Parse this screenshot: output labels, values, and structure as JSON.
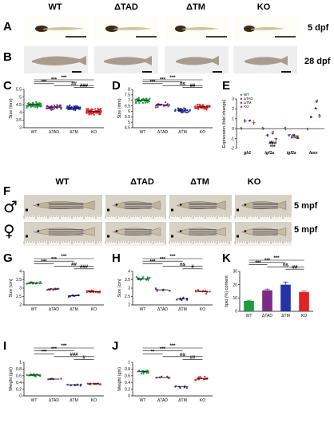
{
  "groups": [
    "WT",
    "ΔTAD",
    "ΔTM",
    "KO"
  ],
  "colors": {
    "WT": "#1e9c3a",
    "ΔTAD": "#7d2a86",
    "ΔTM": "#2533a8",
    "KO": "#e02424"
  },
  "panel_letters": [
    "A",
    "B",
    "C",
    "D",
    "E",
    "F",
    "G",
    "H",
    "I",
    "J",
    "K"
  ],
  "stages": {
    "a": "5 dpf",
    "b": "28 dpf",
    "f_top": "5 mpf",
    "f_bottom": "5 mpf"
  },
  "sex": {
    "male": "♂",
    "female": "♀"
  },
  "sig": {
    "C": [
      [
        "***",
        "WT",
        "KO"
      ],
      [
        "***",
        "WT",
        "ΔTM"
      ],
      [
        "***",
        "WT",
        "ΔTAD"
      ],
      [
        "##",
        "ΔTAD",
        "KO"
      ],
      [
        "###",
        "ΔTM",
        "KO"
      ]
    ],
    "D": [
      [
        "***",
        "WT",
        "KO"
      ],
      [
        "***",
        "WT",
        "ΔTM"
      ],
      [
        "***",
        "WT",
        "ΔTAD"
      ],
      [
        "ns",
        "ΔTAD",
        "KO"
      ],
      [
        "##",
        "ΔTM",
        "KO"
      ]
    ],
    "G": [
      [
        "***",
        "WT",
        "KO"
      ],
      [
        "***",
        "WT",
        "ΔTM"
      ],
      [
        "***",
        "WT",
        "ΔTAD"
      ],
      [
        "##",
        "ΔTAD",
        "KO"
      ],
      [
        "###",
        "ΔTM",
        "KO"
      ]
    ],
    "H": [
      [
        "***",
        "WT",
        "KO"
      ],
      [
        "***",
        "WT",
        "ΔTM"
      ],
      [
        "***",
        "WT",
        "ΔTAD"
      ],
      [
        "ns",
        "ΔTAD",
        "KO"
      ],
      [
        "#",
        "ΔTM",
        "KO"
      ]
    ],
    "I": [
      [
        "***",
        "WT",
        "KO"
      ],
      [
        "***",
        "WT",
        "ΔTM"
      ],
      [
        "***",
        "WT",
        "ΔTAD"
      ],
      [
        "###",
        "ΔTAD",
        "KO"
      ],
      [
        "#",
        "ΔTM",
        "KO"
      ]
    ],
    "J": [
      [
        "***",
        "WT",
        "KO"
      ],
      [
        "***",
        "WT",
        "ΔTM"
      ],
      [
        "**",
        "WT",
        "ΔTAD"
      ],
      [
        "ns",
        "ΔTAD",
        "KO"
      ],
      [
        "##",
        "ΔTM",
        "KO"
      ]
    ],
    "K": [
      [
        "***",
        "WT",
        "KO"
      ],
      [
        "***",
        "WT",
        "ΔTM"
      ],
      [
        "***",
        "WT",
        "ΔTAD"
      ],
      [
        "ns",
        "ΔTAD",
        "KO"
      ],
      [
        "##",
        "ΔTM",
        "KO"
      ]
    ]
  },
  "chart_data": [
    {
      "panel": "C",
      "type": "scatter",
      "ylabel": "Size (mm)",
      "ylim": [
        3.0,
        5.5
      ],
      "yticks": [
        3.0,
        3.5,
        4.0,
        4.5,
        5.0,
        5.5
      ],
      "categories": [
        "WT",
        "ΔTAD",
        "ΔTM",
        "KO"
      ],
      "means": [
        4.5,
        4.35,
        4.3,
        4.05
      ],
      "spread": [
        0.25,
        0.25,
        0.2,
        0.3
      ],
      "n": [
        60,
        40,
        55,
        70
      ]
    },
    {
      "panel": "D",
      "type": "scatter",
      "ylabel": "Size (mm)",
      "ylim": [
        4.5,
        8.0
      ],
      "yticks": [
        4.5,
        5.0,
        5.5,
        6.0,
        6.5,
        7.0,
        7.5,
        8.0
      ],
      "categories": [
        "WT",
        "ΔTAD",
        "ΔTM",
        "KO"
      ],
      "means": [
        7.0,
        6.6,
        6.1,
        6.4
      ],
      "spread": [
        0.35,
        0.3,
        0.3,
        0.35
      ],
      "n": [
        45,
        20,
        35,
        45
      ]
    },
    {
      "panel": "E",
      "type": "scatter",
      "ylabel": "Expression (fold change)",
      "ylim": [
        -2,
        3
      ],
      "yticks": [
        -2,
        -1,
        0,
        1,
        2,
        3
      ],
      "categories": [
        "gh1",
        "igf1a",
        "igf2a",
        "fasn"
      ],
      "series": [
        {
          "name": "WT",
          "values": [
            0,
            0,
            0,
            0
          ]
        },
        {
          "name": "ΔTAD",
          "values": [
            0.8,
            -0.7,
            -0.6,
            1.2
          ]
        },
        {
          "name": "ΔTM",
          "values": [
            0.8,
            -1.4,
            -0.6,
            2.0
          ]
        },
        {
          "name": "KO",
          "values": [
            0.6,
            -1.0,
            -1.0,
            1.3
          ]
        }
      ],
      "sig": [
        [
          "#",
          "igf1a"
        ],
        [
          "###",
          "igf1a"
        ],
        [
          "***",
          "igf1a"
        ],
        [
          "###",
          "igf2a"
        ],
        [
          "#",
          "fasn"
        ]
      ]
    },
    {
      "panel": "G",
      "type": "scatter",
      "ylabel": "Size (cm)",
      "ylim": [
        2.0,
        4.0
      ],
      "yticks": [
        2.0,
        2.5,
        3.0,
        3.5,
        4.0
      ],
      "categories": [
        "WT",
        "ΔTAD",
        "ΔTM",
        "KO"
      ],
      "means": [
        3.3,
        2.95,
        2.55,
        2.8
      ],
      "spread": [
        0.12,
        0.1,
        0.08,
        0.12
      ],
      "n": [
        20,
        10,
        10,
        22
      ]
    },
    {
      "panel": "H",
      "type": "scatter",
      "ylabel": "Size (cm)",
      "ylim": [
        2.0,
        4.0
      ],
      "yticks": [
        2.0,
        2.5,
        3.0,
        3.5,
        4.0
      ],
      "categories": [
        "WT",
        "ΔTAD",
        "ΔTM",
        "KO"
      ],
      "means": [
        3.55,
        2.9,
        2.35,
        2.8
      ],
      "spread": [
        0.2,
        0.15,
        0.12,
        0.15
      ],
      "n": [
        18,
        8,
        8,
        16
      ]
    },
    {
      "panel": "I",
      "type": "scatter",
      "ylabel": "Weight (gm)",
      "ylim": [
        0.0,
        1.0
      ],
      "yticks": [
        0.0,
        0.2,
        0.4,
        0.6,
        0.8,
        1.0
      ],
      "categories": [
        "WT",
        "ΔTAD",
        "ΔTM",
        "KO"
      ],
      "means": [
        0.62,
        0.5,
        0.33,
        0.36
      ],
      "spread": [
        0.08,
        0.03,
        0.03,
        0.03
      ],
      "n": [
        20,
        8,
        10,
        14
      ]
    },
    {
      "panel": "J",
      "type": "scatter",
      "ylabel": "Weight (gm)",
      "ylim": [
        0.0,
        1.0
      ],
      "yticks": [
        0.0,
        0.2,
        0.4,
        0.6,
        0.8,
        1.0
      ],
      "categories": [
        "WT",
        "ΔTAD",
        "ΔTM",
        "KO"
      ],
      "means": [
        0.72,
        0.55,
        0.28,
        0.52
      ],
      "spread": [
        0.1,
        0.06,
        0.08,
        0.08
      ],
      "n": [
        18,
        8,
        7,
        16
      ]
    },
    {
      "panel": "K",
      "type": "bar",
      "ylabel": "lipid (%) content",
      "ylim": [
        0,
        30
      ],
      "yticks": [
        0,
        10,
        20,
        30
      ],
      "categories": [
        "WT",
        "ΔTAD",
        "ΔTM",
        "KO"
      ],
      "values": [
        7.8,
        15.8,
        20.0,
        14.5
      ],
      "errors": [
        0.5,
        0.9,
        2.0,
        0.7
      ]
    }
  ]
}
